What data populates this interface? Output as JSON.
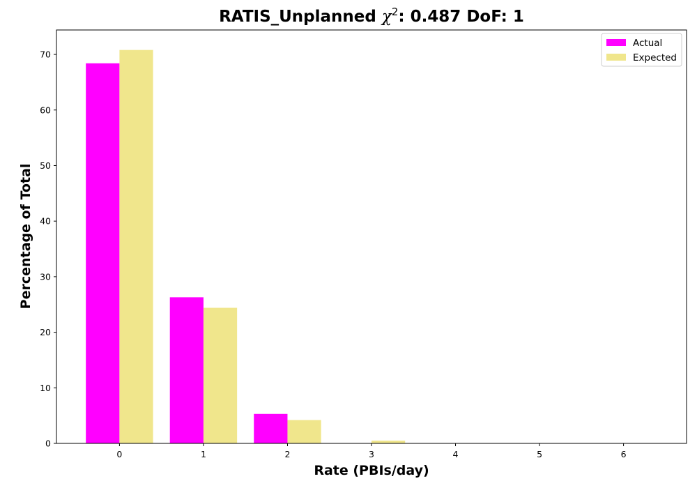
{
  "chart_data": {
    "type": "bar",
    "title": {
      "prefix": "RATIS_Unplanned ",
      "chi_symbol": "χ",
      "chi_exponent": "2",
      "suffix": ": 0.487 DoF: 1"
    },
    "xlabel": "Rate (PBIs/day)",
    "ylabel": "Percentage of Total",
    "categories": [
      0,
      1,
      2,
      3,
      4,
      5,
      6
    ],
    "xlim": [
      -0.75,
      6.75
    ],
    "ylim": [
      0,
      74.4
    ],
    "yticks": [
      0,
      10,
      20,
      30,
      40,
      50,
      60,
      70
    ],
    "grid": false,
    "legend_position": "top-right",
    "series": [
      {
        "name": "Actual",
        "color": "#ff00ff",
        "values": [
          68.4,
          26.3,
          5.3,
          0,
          0,
          0,
          0
        ]
      },
      {
        "name": "Expected",
        "color": "#f0e68c",
        "values": [
          70.8,
          24.4,
          4.2,
          0.5,
          0.05,
          0,
          0
        ]
      }
    ]
  }
}
